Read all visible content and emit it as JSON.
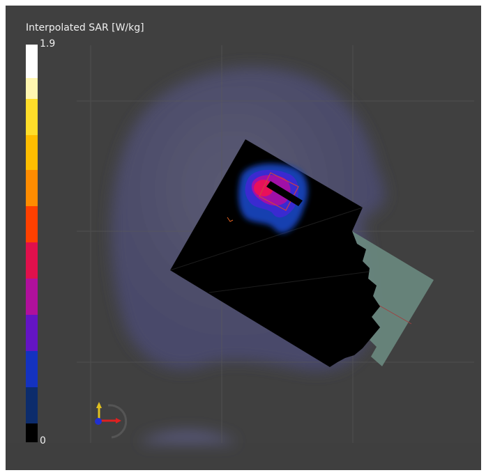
{
  "legend": {
    "title": "Interpolated SAR [W/kg]",
    "max_label": "1.9",
    "min_label": "0"
  }
}
